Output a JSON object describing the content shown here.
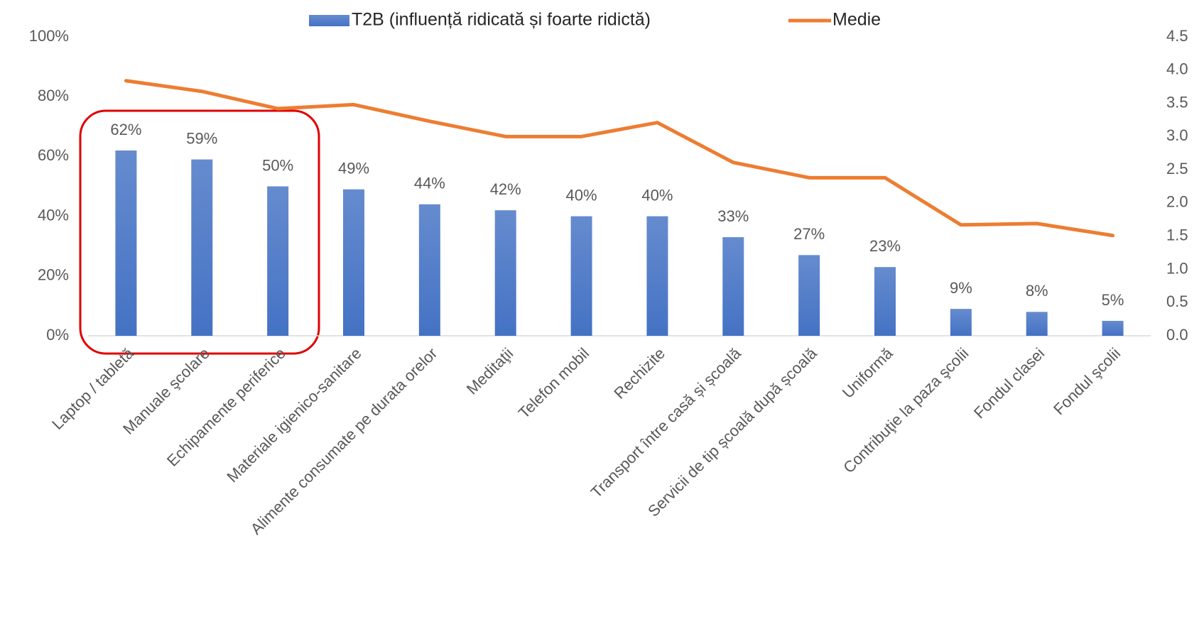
{
  "chart_data": {
    "type": "bar",
    "categories": [
      "Laptop / tabletă",
      "Manuale şcolare",
      "Echipamente periferice",
      "Materiale igienico-sanitare",
      "Alimente consumate pe durata orelor",
      "Meditaţii",
      "Telefon mobil",
      "Rechizite",
      "Transport între casă și școală",
      "Servicii de tip școală după școală",
      "Uniformă",
      "Contribuţie la paza şcolii",
      "Fondul clasei",
      "Fondul şcolii"
    ],
    "series": [
      {
        "name": "T2B (influență ridicată și foarte ridictă)",
        "color": "#4472c4",
        "type": "bar",
        "values": [
          62,
          59,
          50,
          49,
          44,
          42,
          40,
          40,
          33,
          27,
          23,
          9,
          8,
          5
        ],
        "value_labels": [
          "62%",
          "59%",
          "50%",
          "49%",
          "44%",
          "42%",
          "40%",
          "40%",
          "33%",
          "27%",
          "23%",
          "9%",
          "8%",
          "5%"
        ]
      },
      {
        "name": "Medie",
        "color": "#ed7d31",
        "type": "line",
        "axis": "y2",
        "values": [
          3.84,
          3.68,
          3.42,
          3.48,
          3.23,
          3.0,
          3.0,
          3.21,
          2.61,
          2.38,
          2.38,
          1.67,
          1.69,
          1.51
        ]
      }
    ],
    "ylim": [
      0,
      100
    ],
    "yticks": [
      {
        "value": 0,
        "label": "0%"
      },
      {
        "value": 20,
        "label": "20%"
      },
      {
        "value": 40,
        "label": "40%"
      },
      {
        "value": 60,
        "label": "60%"
      },
      {
        "value": 80,
        "label": "80%"
      },
      {
        "value": 100,
        "label": "100%"
      }
    ],
    "y2lim": [
      0,
      4.5
    ],
    "y2ticks": [
      {
        "value": 0,
        "label": "0.0"
      },
      {
        "value": 0.5,
        "label": "0.5"
      },
      {
        "value": 1,
        "label": "1.0"
      },
      {
        "value": 1.5,
        "label": "1.5"
      },
      {
        "value": 2,
        "label": "2.0"
      },
      {
        "value": 2.5,
        "label": "2.5"
      },
      {
        "value": 3,
        "label": "3.0"
      },
      {
        "value": 3.5,
        "label": "3.5"
      },
      {
        "value": 4,
        "label": "4.0"
      },
      {
        "value": 4.5,
        "label": "4.5"
      }
    ],
    "legend": "top",
    "grid": false
  }
}
